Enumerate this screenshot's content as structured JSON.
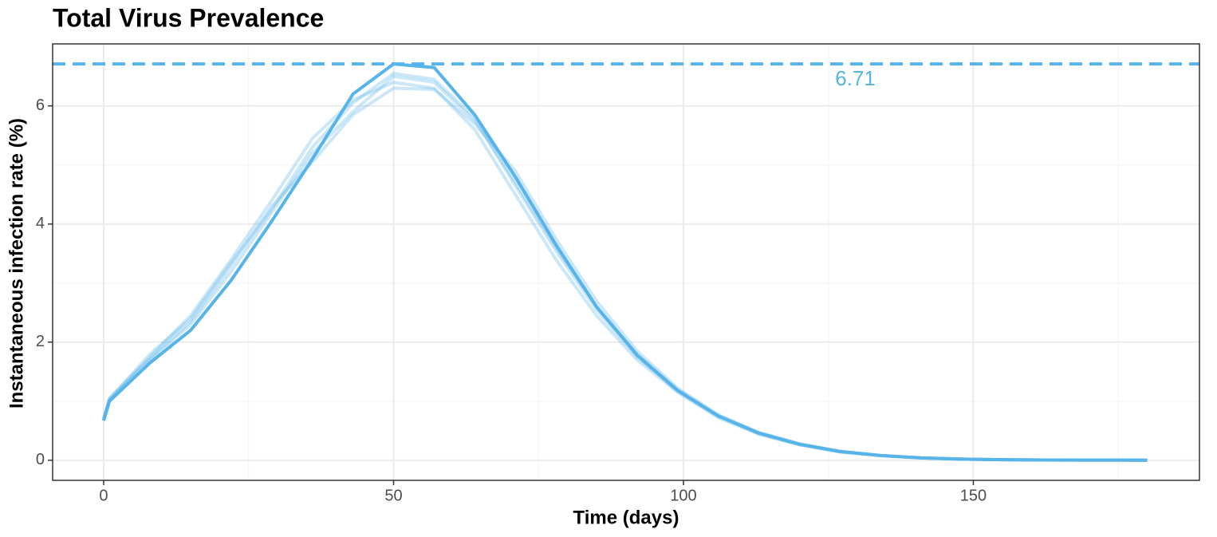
{
  "chart_data": {
    "type": "line",
    "title": "Total Virus Prevalence",
    "x_label": "Time (days)",
    "y_label": "Instantaneous infection rate (%)",
    "x": [
      0,
      1,
      8,
      15,
      22,
      29,
      36,
      43,
      50,
      57,
      64,
      71,
      78,
      85,
      92,
      99,
      106,
      113,
      120,
      127,
      134,
      141,
      148,
      155,
      162,
      169,
      176,
      180
    ],
    "series": [
      {
        "color": "#56B4E9",
        "opacity": 0.3,
        "values": [
          0.7,
          1.05,
          1.75,
          2.45,
          3.4,
          4.4,
          5.45,
          6.1,
          6.4,
          6.3,
          5.6,
          4.5,
          3.4,
          2.45,
          1.7,
          1.15,
          0.72,
          0.44,
          0.26,
          0.14,
          0.08,
          0.04,
          0.02,
          0.01,
          0.005,
          0.003,
          0.002,
          0.001
        ]
      },
      {
        "color": "#56B4E9",
        "opacity": 0.3,
        "values": [
          0.68,
          1.02,
          1.7,
          2.3,
          3.2,
          4.2,
          5.2,
          5.9,
          6.5,
          6.4,
          5.75,
          4.7,
          3.6,
          2.6,
          1.8,
          1.2,
          0.76,
          0.47,
          0.28,
          0.15,
          0.08,
          0.04,
          0.02,
          0.01,
          0.005,
          0.003,
          0.002,
          0.001
        ]
      },
      {
        "color": "#56B4E9",
        "opacity": 0.3,
        "values": [
          0.69,
          1.03,
          1.72,
          2.35,
          3.3,
          4.3,
          5.05,
          5.85,
          6.3,
          6.28,
          5.7,
          4.9,
          3.75,
          2.7,
          1.85,
          1.22,
          0.77,
          0.47,
          0.28,
          0.15,
          0.08,
          0.04,
          0.02,
          0.01,
          0.005,
          0.003,
          0.002,
          0.001
        ]
      },
      {
        "color": "#56B4E9",
        "opacity": 0.3,
        "values": [
          0.7,
          1.04,
          1.8,
          2.4,
          3.35,
          4.25,
          5.3,
          6.05,
          6.55,
          6.45,
          5.8,
          4.65,
          3.55,
          2.55,
          1.75,
          1.17,
          0.74,
          0.45,
          0.27,
          0.14,
          0.08,
          0.04,
          0.02,
          0.01,
          0.005,
          0.003,
          0.002,
          0.001
        ]
      },
      {
        "color": "#56B4E9",
        "opacity": 1,
        "values": [
          0.67,
          1.0,
          1.65,
          2.2,
          3.05,
          4.05,
          5.1,
          6.2,
          6.71,
          6.65,
          5.85,
          4.8,
          3.65,
          2.6,
          1.78,
          1.18,
          0.75,
          0.46,
          0.27,
          0.15,
          0.08,
          0.04,
          0.02,
          0.01,
          0.005,
          0.003,
          0.002,
          0.001
        ]
      }
    ],
    "hline": {
      "value": 6.71,
      "color": "#56B4E9",
      "dashed": true
    },
    "xlim": [
      -8.8,
      189
    ],
    "ylim": [
      -0.34,
      7.05
    ],
    "xticks": [
      0,
      50,
      100,
      150
    ],
    "yticks": [
      0,
      2,
      4,
      6
    ],
    "xminor": [
      25,
      75,
      125,
      175
    ],
    "yminor": [
      1,
      3,
      5
    ],
    "grid": true
  }
}
